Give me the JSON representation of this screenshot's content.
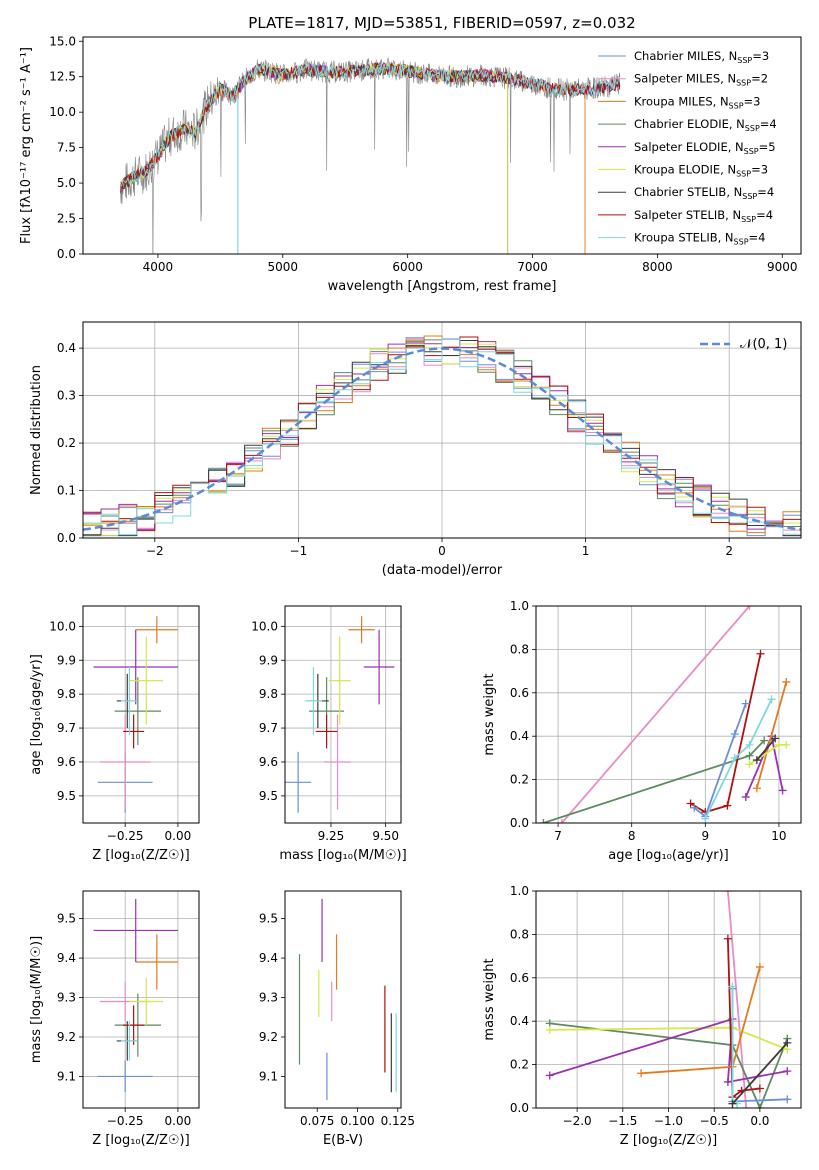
{
  "chart_data": [
    {
      "id": "spectrum",
      "type": "line",
      "title": "PLATE=1817, MJD=53851, FIBERID=0597, z=0.032",
      "xlabel": "wavelength [Angstrom, rest frame]",
      "ylabel": "Flux [fλ10⁻¹⁷ erg cm⁻² s⁻¹ A⁻¹]",
      "xlim": [
        3400,
        9150
      ],
      "ylim": [
        0,
        15.3
      ],
      "xticks": [
        "4000",
        "5000",
        "6000",
        "7000",
        "8000",
        "9000"
      ],
      "yticks": [
        "0.0",
        "2.5",
        "5.0",
        "7.5",
        "10.0",
        "12.5",
        "15.0"
      ],
      "grid": false,
      "legend_position": "upper-right",
      "data_envelope": {
        "x": [
          3700,
          3800,
          3900,
          4000,
          4100,
          4200,
          4300,
          4400,
          4500,
          4600,
          4700,
          4800,
          4900,
          5000,
          5200,
          5400,
          5600,
          5800,
          6000,
          6200,
          6400,
          6600,
          6800,
          7000,
          7200,
          7400,
          7600,
          7700
        ],
        "y": [
          4.7,
          5.4,
          5.8,
          6.9,
          8.3,
          8.8,
          8.6,
          10.6,
          11.6,
          11.2,
          12.3,
          13.0,
          12.9,
          12.6,
          13.0,
          12.8,
          12.9,
          13.1,
          12.9,
          12.6,
          12.5,
          12.6,
          12.4,
          12.0,
          11.6,
          11.6,
          11.8,
          12.0
        ]
      },
      "series": [
        {
          "name": "Chabrier MILES, N_SSP=3",
          "color": "#6b8fd6",
          "end": 7700
        },
        {
          "name": "Salpeter MILES, N_SSP=2",
          "color": "#e88cc4",
          "end": 7700
        },
        {
          "name": "Kroupa MILES, N_SSP=3",
          "color": "#e37a1e",
          "end": 7420
        },
        {
          "name": "Chabrier ELODIE, N_SSP=4",
          "color": "#5e8a62",
          "end": 6800
        },
        {
          "name": "Salpeter ELODIE, N_SSP=5",
          "color": "#9b30b0",
          "end": 6800
        },
        {
          "name": "Kroupa ELODIE, N_SSP=3",
          "color": "#d6e84a",
          "end": 6800
        },
        {
          "name": "Chabrier STELIB, N_SSP=4",
          "color": "#3c3c3c",
          "end": 7700
        },
        {
          "name": "Salpeter STELIB, N_SSP=4",
          "color": "#b01010",
          "end": 7700
        },
        {
          "name": "Kroupa STELIB, N_SSP=4",
          "color": "#7fd8e0",
          "end": 7700
        }
      ]
    },
    {
      "id": "residuals",
      "type": "line",
      "xlabel": "(data-model)/error",
      "ylabel": "Normed distribution",
      "xlim": [
        -2.5,
        2.5
      ],
      "ylim": [
        0,
        0.455
      ],
      "xticks": [
        "−2",
        "−1",
        "0",
        "1",
        "2"
      ],
      "yticks": [
        "0.0",
        "0.1",
        "0.2",
        "0.3",
        "0.4"
      ],
      "grid": true,
      "legend_position": "upper-right",
      "gaussian_label": "𝒩(0, 1)",
      "gaussian_color": "#5b8ad6"
    },
    {
      "id": "age-vs-Z",
      "type": "scatter",
      "xlabel": "Z [log₁₀(Z/Z☉)]",
      "ylabel": "age  [log₁₀(age/yr)]",
      "xlim": [
        -0.45,
        0.1
      ],
      "ylim": [
        9.42,
        10.06
      ],
      "xticks": [
        "−0.25",
        "0.00"
      ],
      "xtick_values": [
        -0.25,
        0.0
      ],
      "yticks": [
        "9.5",
        "9.6",
        "9.7",
        "9.8",
        "9.9",
        "10.0"
      ],
      "ytick_values": [
        9.5,
        9.6,
        9.7,
        9.8,
        9.9,
        10.0
      ],
      "grid": true,
      "points": [
        {
          "color": "#6b8fd6",
          "x": -0.25,
          "y": 9.54,
          "xerr": 0.13,
          "yerr": 0.09
        },
        {
          "color": "#e88cc4",
          "x": -0.25,
          "y": 9.6,
          "xerr": 0.12,
          "yerr": 0.14
        },
        {
          "color": "#e37a1e",
          "x": -0.1,
          "y": 9.99,
          "xerr": 0.1,
          "yerr": 0.04
        },
        {
          "color": "#5e8a62",
          "x": -0.19,
          "y": 9.75,
          "xerr": 0.11,
          "yerr": 0.1
        },
        {
          "color": "#9b30b0",
          "x": -0.2,
          "y": 9.88,
          "xerr": 0.2,
          "yerr": 0.11
        },
        {
          "color": "#d6e84a",
          "x": -0.15,
          "y": 9.84,
          "xerr": 0.08,
          "yerr": 0.13
        },
        {
          "color": "#3c3c3c",
          "x": -0.24,
          "y": 9.78,
          "xerr": 0.05,
          "yerr": 0.08
        },
        {
          "color": "#b01010",
          "x": -0.21,
          "y": 9.69,
          "xerr": 0.05,
          "yerr": 0.05
        },
        {
          "color": "#7fd8e0",
          "x": -0.23,
          "y": 9.78,
          "xerr": 0.04,
          "yerr": 0.1
        }
      ]
    },
    {
      "id": "age-vs-mass",
      "type": "scatter",
      "xlabel": "mass [log₁₀(M/M☉)]",
      "ylabel": "",
      "xlim": [
        9.04,
        9.57
      ],
      "ylim": [
        9.42,
        10.06
      ],
      "xticks": [
        "9.25",
        "9.50"
      ],
      "xtick_values": [
        9.25,
        9.5
      ],
      "yticks": [
        "9.5",
        "9.6",
        "9.7",
        "9.8",
        "9.9",
        "10.0"
      ],
      "ytick_values": [
        9.5,
        9.6,
        9.7,
        9.8,
        9.9,
        10.0
      ],
      "grid": true,
      "points": [
        {
          "color": "#6b8fd6",
          "x": 9.1,
          "y": 9.54,
          "xerr": 0.06,
          "yerr": 0.09
        },
        {
          "color": "#e88cc4",
          "x": 9.28,
          "y": 9.6,
          "xerr": 0.06,
          "yerr": 0.14
        },
        {
          "color": "#e37a1e",
          "x": 9.39,
          "y": 9.99,
          "xerr": 0.06,
          "yerr": 0.04
        },
        {
          "color": "#5e8a62",
          "x": 9.23,
          "y": 9.75,
          "xerr": 0.08,
          "yerr": 0.1
        },
        {
          "color": "#9b30b0",
          "x": 9.47,
          "y": 9.88,
          "xerr": 0.07,
          "yerr": 0.11
        },
        {
          "color": "#d6e84a",
          "x": 9.29,
          "y": 9.84,
          "xerr": 0.05,
          "yerr": 0.13
        },
        {
          "color": "#3c3c3c",
          "x": 9.19,
          "y": 9.78,
          "xerr": 0.05,
          "yerr": 0.08
        },
        {
          "color": "#b01010",
          "x": 9.23,
          "y": 9.69,
          "xerr": 0.05,
          "yerr": 0.05
        },
        {
          "color": "#7fd8e0",
          "x": 9.17,
          "y": 9.78,
          "xerr": 0.04,
          "yerr": 0.1
        }
      ]
    },
    {
      "id": "mass-weight-vs-age",
      "type": "line",
      "xlabel": "age  [log₁₀(age/yr)]",
      "ylabel": "mass weight",
      "xlim": [
        6.7,
        10.3
      ],
      "ylim": [
        0,
        1.0
      ],
      "xticks": [
        "7",
        "8",
        "9",
        "10"
      ],
      "xtick_values": [
        7,
        8,
        9,
        10
      ],
      "yticks": [
        "0.0",
        "0.2",
        "0.4",
        "0.6",
        "0.8",
        "1.0"
      ],
      "ytick_values": [
        0,
        0.2,
        0.4,
        0.6,
        0.8,
        1.0
      ],
      "grid": true,
      "series": [
        {
          "color": "#e88cc4",
          "x": [
            7.05,
            9.6
          ],
          "y": [
            0.0,
            1.0
          ]
        },
        {
          "color": "#5e8a62",
          "x": [
            6.8,
            9.6,
            9.8
          ],
          "y": [
            0.0,
            0.31,
            0.38
          ]
        },
        {
          "color": "#b01010",
          "x": [
            8.8,
            9.0,
            9.3,
            9.75
          ],
          "y": [
            0.09,
            0.05,
            0.08,
            0.78
          ]
        },
        {
          "color": "#6b8fd6",
          "x": [
            8.85,
            9.0,
            9.4,
            9.55
          ],
          "y": [
            0.07,
            0.03,
            0.41,
            0.55
          ]
        },
        {
          "color": "#7fd8e0",
          "x": [
            9.0,
            9.4,
            9.6,
            9.9
          ],
          "y": [
            0.02,
            0.3,
            0.36,
            0.57
          ]
        },
        {
          "color": "#9b30b0",
          "x": [
            9.55,
            9.9,
            10.05
          ],
          "y": [
            0.12,
            0.4,
            0.15
          ]
        },
        {
          "color": "#e37a1e",
          "x": [
            9.7,
            10.1
          ],
          "y": [
            0.16,
            0.65
          ]
        },
        {
          "color": "#d6e84a",
          "x": [
            9.6,
            10.0,
            10.1
          ],
          "y": [
            0.27,
            0.36,
            0.36
          ]
        },
        {
          "color": "#3c3c3c",
          "x": [
            9.7,
            9.95
          ],
          "y": [
            0.29,
            0.39
          ]
        }
      ]
    },
    {
      "id": "mass-vs-Z",
      "type": "scatter",
      "xlabel": "Z [log₁₀(Z/Z☉)]",
      "ylabel": "mass [log₁₀(M/M☉)]",
      "xlim": [
        -0.45,
        0.1
      ],
      "ylim": [
        9.02,
        9.57
      ],
      "xticks": [
        "−0.25",
        "0.00"
      ],
      "xtick_values": [
        -0.25,
        0.0
      ],
      "yticks": [
        "9.1",
        "9.2",
        "9.3",
        "9.4",
        "9.5"
      ],
      "ytick_values": [
        9.1,
        9.2,
        9.3,
        9.4,
        9.5
      ],
      "grid": true,
      "points": [
        {
          "color": "#6b8fd6",
          "x": -0.25,
          "y": 9.1,
          "xerr": 0.13,
          "yerr": 0.04
        },
        {
          "color": "#e88cc4",
          "x": -0.25,
          "y": 9.29,
          "xerr": 0.12,
          "yerr": 0.05
        },
        {
          "color": "#e37a1e",
          "x": -0.1,
          "y": 9.39,
          "xerr": 0.1,
          "yerr": 0.07
        },
        {
          "color": "#5e8a62",
          "x": -0.19,
          "y": 9.23,
          "xerr": 0.11,
          "yerr": 0.08
        },
        {
          "color": "#9b30b0",
          "x": -0.2,
          "y": 9.47,
          "xerr": 0.2,
          "yerr": 0.08
        },
        {
          "color": "#d6e84a",
          "x": -0.15,
          "y": 9.29,
          "xerr": 0.08,
          "yerr": 0.06
        },
        {
          "color": "#3c3c3c",
          "x": -0.24,
          "y": 9.19,
          "xerr": 0.05,
          "yerr": 0.05
        },
        {
          "color": "#b01010",
          "x": -0.21,
          "y": 9.23,
          "xerr": 0.05,
          "yerr": 0.05
        },
        {
          "color": "#7fd8e0",
          "x": -0.23,
          "y": 9.19,
          "xerr": 0.04,
          "yerr": 0.05
        }
      ]
    },
    {
      "id": "mass-vs-ebv",
      "type": "scatter",
      "xlabel": "E(B-V)",
      "ylabel": "",
      "xlim": [
        0.055,
        0.127
      ],
      "ylim": [
        9.02,
        9.57
      ],
      "xticks": [
        "0.075",
        "0.100",
        "0.125"
      ],
      "xtick_values": [
        0.075,
        0.1,
        0.125
      ],
      "yticks": [
        "9.1",
        "9.2",
        "9.3",
        "9.4",
        "9.5"
      ],
      "ytick_values": [
        9.1,
        9.2,
        9.3,
        9.4,
        9.5
      ],
      "grid": false,
      "points": [
        {
          "color": "#6b8fd6",
          "x": 0.081,
          "y": 9.1,
          "xerr": 0,
          "yerr": 0.06
        },
        {
          "color": "#e88cc4",
          "x": 0.084,
          "y": 9.29,
          "xerr": 0,
          "yerr": 0.05
        },
        {
          "color": "#e37a1e",
          "x": 0.087,
          "y": 9.39,
          "xerr": 0,
          "yerr": 0.07
        },
        {
          "color": "#5e8a62",
          "x": 0.064,
          "y": 9.27,
          "xerr": 0,
          "yerr": 0.14
        },
        {
          "color": "#9b30b0",
          "x": 0.078,
          "y": 9.47,
          "xerr": 0,
          "yerr": 0.08
        },
        {
          "color": "#d6e84a",
          "x": 0.076,
          "y": 9.31,
          "xerr": 0,
          "yerr": 0.06
        },
        {
          "color": "#3c3c3c",
          "x": 0.121,
          "y": 9.16,
          "xerr": 0,
          "yerr": 0.1
        },
        {
          "color": "#b01010",
          "x": 0.117,
          "y": 9.22,
          "xerr": 0,
          "yerr": 0.11
        },
        {
          "color": "#7fd8e0",
          "x": 0.124,
          "y": 9.16,
          "xerr": 0,
          "yerr": 0.1
        }
      ]
    },
    {
      "id": "mass-weight-vs-Z",
      "type": "line",
      "xlabel": "Z [log₁₀(Z/Z☉)]",
      "ylabel": "mass weight",
      "xlim": [
        -2.45,
        0.45
      ],
      "ylim": [
        0,
        1.0
      ],
      "xticks": [
        "−2.0",
        "−1.5",
        "−1.0",
        "−0.5",
        "0.0"
      ],
      "xtick_values": [
        -2.0,
        -1.5,
        -1.0,
        -0.5,
        0.0
      ],
      "yticks": [
        "0.0",
        "0.2",
        "0.4",
        "0.6",
        "0.8",
        "1.0"
      ],
      "ytick_values": [
        0,
        0.2,
        0.4,
        0.6,
        0.8,
        1.0
      ],
      "grid": true,
      "series": [
        {
          "color": "#e88cc4",
          "x": [
            -0.35,
            -0.15
          ],
          "y": [
            1.0,
            0.0
          ]
        },
        {
          "color": "#5e8a62",
          "x": [
            -2.3,
            -0.3,
            0.0,
            0.3
          ],
          "y": [
            0.39,
            0.29,
            0.0,
            0.32
          ]
        },
        {
          "color": "#d6e84a",
          "x": [
            -2.3,
            -0.3,
            0.3
          ],
          "y": [
            0.36,
            0.37,
            0.27
          ]
        },
        {
          "color": "#9b30b0",
          "x": [
            -2.3,
            -0.3,
            -0.35,
            0.3
          ],
          "y": [
            0.15,
            0.41,
            0.12,
            0.17
          ]
        },
        {
          "color": "#e37a1e",
          "x": [
            -1.3,
            -0.3,
            0.0
          ],
          "y": [
            0.16,
            0.19,
            0.65
          ]
        },
        {
          "color": "#b01010",
          "x": [
            -0.35,
            -0.3,
            -0.2,
            0.0
          ],
          "y": [
            0.78,
            0.05,
            0.08,
            0.09
          ]
        },
        {
          "color": "#6b8fd6",
          "x": [
            -0.3,
            -0.3,
            0.3
          ],
          "y": [
            0.55,
            0.03,
            0.04
          ]
        },
        {
          "color": "#7fd8e0",
          "x": [
            -0.3,
            -0.3,
            -0.25
          ],
          "y": [
            0.56,
            0.02,
            0.02
          ]
        },
        {
          "color": "#3c3c3c",
          "x": [
            -0.3,
            0.3
          ],
          "y": [
            0.02,
            0.3
          ]
        }
      ]
    }
  ]
}
